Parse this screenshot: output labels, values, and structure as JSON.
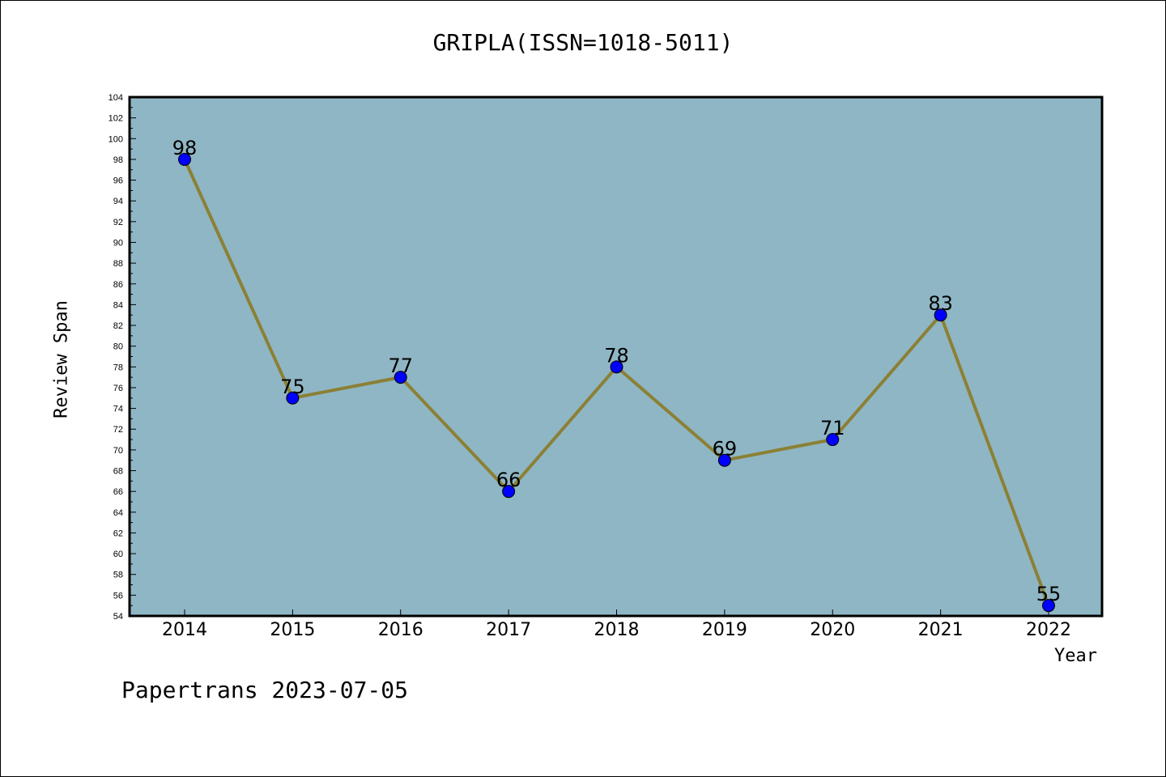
{
  "chart_data": {
    "type": "line",
    "title": "GRIPLA(ISSN=1018-5011)",
    "xlabel": "Year",
    "ylabel": "Review Span",
    "categories": [
      "2014",
      "2015",
      "2016",
      "2017",
      "2018",
      "2019",
      "2020",
      "2021",
      "2022"
    ],
    "series": [
      {
        "values": [
          98,
          75,
          77,
          66,
          78,
          69,
          71,
          83,
          55
        ]
      }
    ],
    "ylim": [
      54,
      104
    ],
    "ytick_step": 2,
    "grid": false,
    "data_labels": true,
    "colors": {
      "plot_background": "#8fb6c4",
      "line": "#8b8035",
      "marker": "#0000ff"
    }
  },
  "footer": {
    "watermark": "Papertrans 2023-07-05"
  }
}
